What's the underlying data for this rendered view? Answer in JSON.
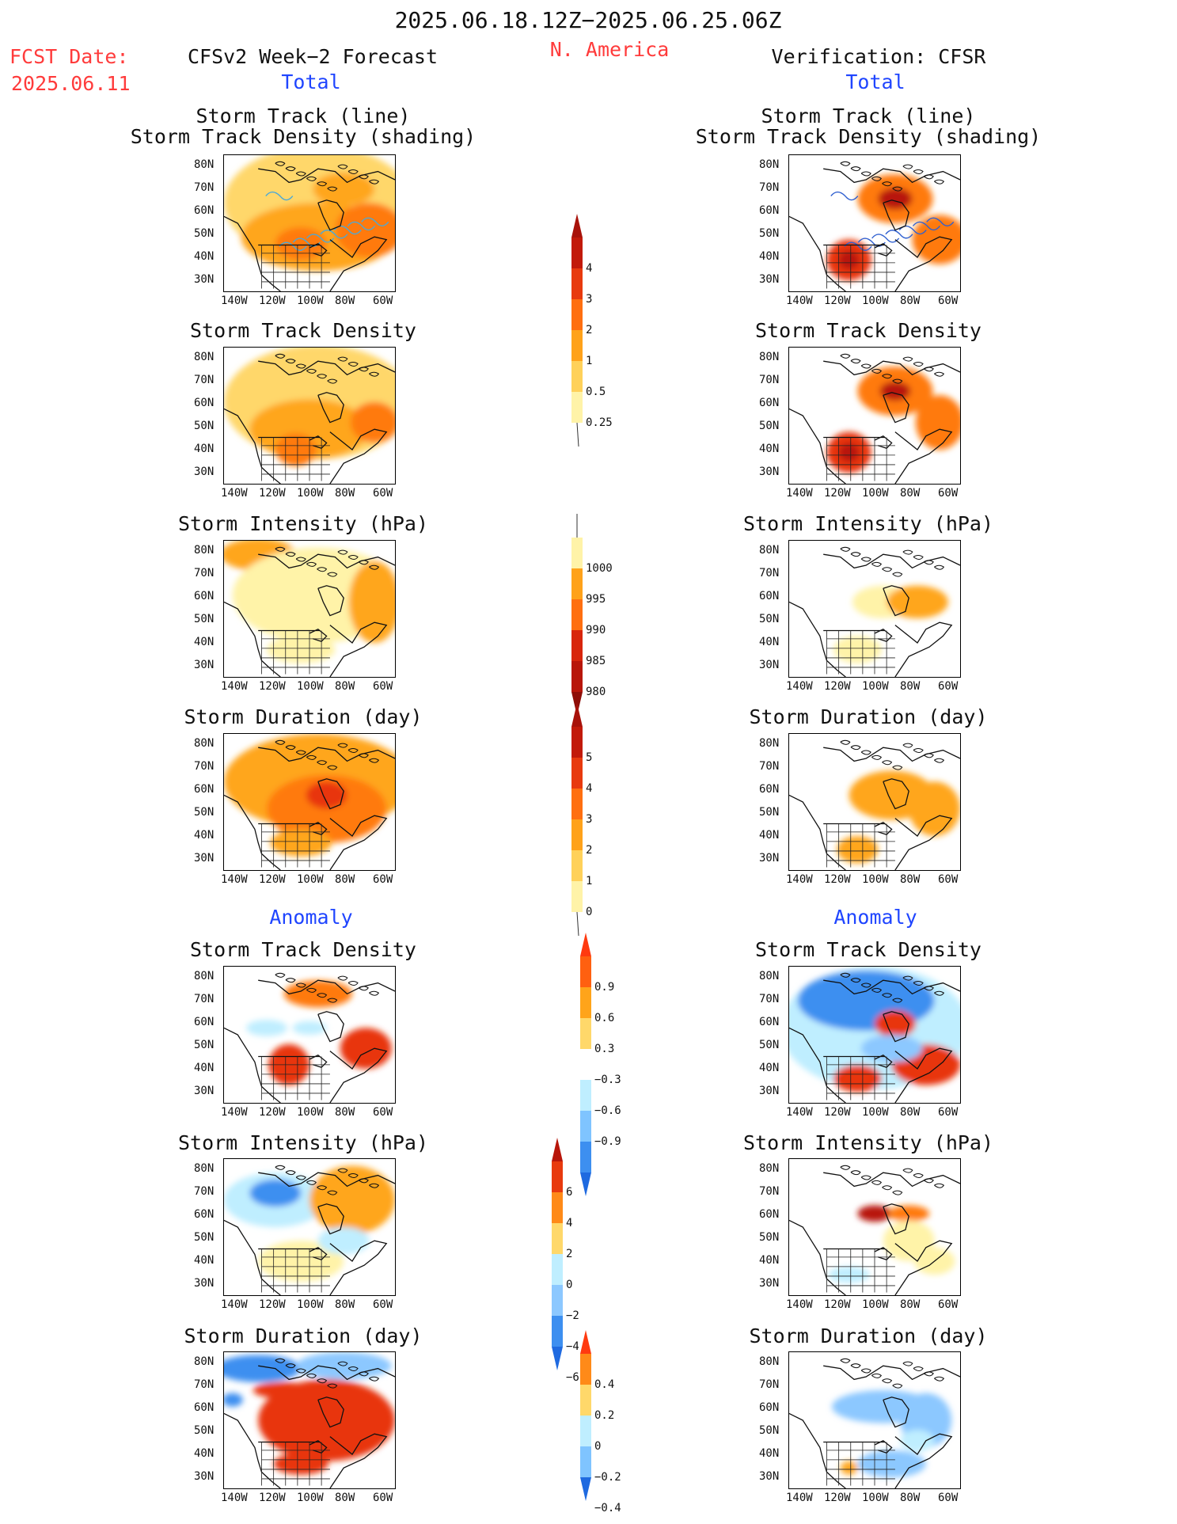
{
  "header": {
    "period": "2025.06.18.12Z−2025.06.25.06Z",
    "region": "N. America",
    "fcst_date_label": "FCST Date:",
    "fcst_date_value": "2025.06.11",
    "left_title": "CFSv2 Week−2 Forecast",
    "right_title": "Verification: CFSR"
  },
  "sections": {
    "total": "Total",
    "anomaly": "Anomaly"
  },
  "panel_titles": {
    "track_line_1": "Storm Track (line)",
    "track_line_2": "Storm Track Density (shading)",
    "density": "Storm Track Density",
    "intensity": "Storm Intensity (hPa)",
    "duration": "Storm Duration (day)"
  },
  "axes": {
    "lat": [
      "80N",
      "70N",
      "60N",
      "50N",
      "40N",
      "30N"
    ],
    "lon": [
      "140W",
      "120W",
      "100W",
      "80W",
      "60W"
    ]
  },
  "colorbars": {
    "density_total": [
      "4",
      "3",
      "2",
      "1",
      "0.5",
      "0.25"
    ],
    "intensity_total": [
      "1000",
      "995",
      "990",
      "985",
      "980"
    ],
    "duration_total": [
      "5",
      "4",
      "3",
      "2",
      "1",
      "0"
    ],
    "density_anom": [
      "0.9",
      "0.6",
      "0.3",
      "−0.3",
      "−0.6",
      "−0.9"
    ],
    "intensity_anom": [
      "6",
      "4",
      "2",
      "0",
      "−2",
      "−4",
      "−6"
    ],
    "duration_anom": [
      "0.4",
      "0.2",
      "0",
      "−0.2",
      "−0.4"
    ]
  },
  "colors": {
    "red_text": "#ff3b3b",
    "blue_text": "#1f45ff",
    "pos": [
      "#fff3a8",
      "#ffd76a",
      "#ffa61a",
      "#ff7a10",
      "#e8360c",
      "#b8160a"
    ],
    "neg": [
      "#bfeeff",
      "#8cc8ff",
      "#3d8ff0",
      "#1356c8"
    ]
  }
}
